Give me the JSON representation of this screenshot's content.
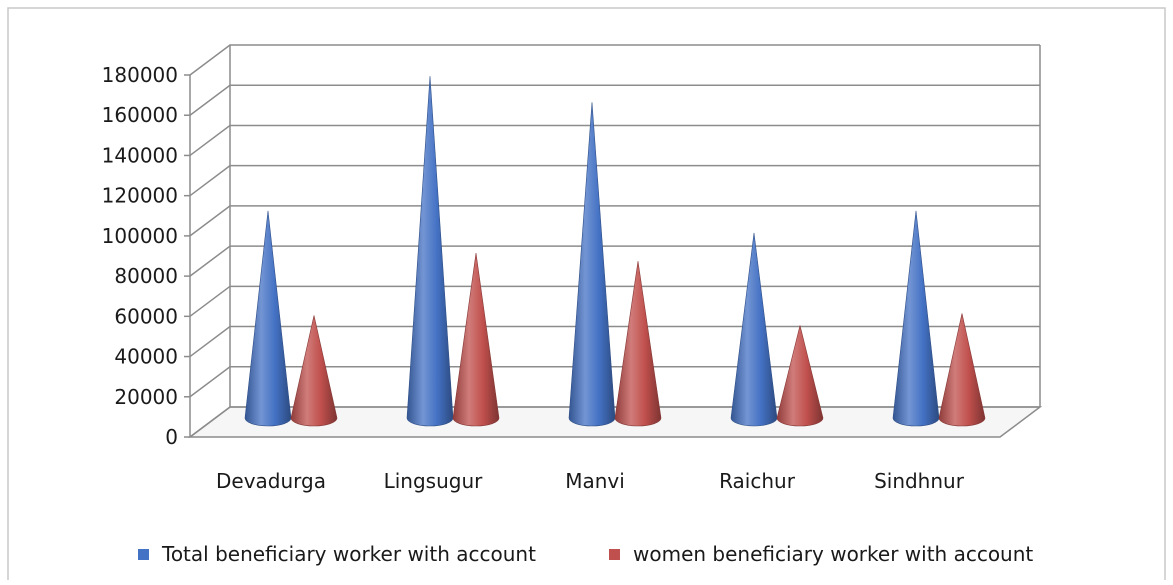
{
  "chart_data": {
    "type": "bar",
    "subtype": "3d-cone",
    "title": "",
    "xlabel": "",
    "ylabel": "",
    "categories": [
      "Devadurga",
      "Lingsugur",
      "Manvi",
      "Raichur",
      "Sindhnur"
    ],
    "series": [
      {
        "name": "Total beneficiary worker with account",
        "values": [
          105000,
          172000,
          159000,
          94000,
          105000
        ],
        "color": "#4472C4"
      },
      {
        "name": "women beneficiary worker with account",
        "values": [
          53000,
          84000,
          80000,
          48000,
          54000
        ],
        "color": "#C0504D"
      }
    ],
    "ylim": [
      0,
      180000
    ],
    "yticks": [
      0,
      20000,
      40000,
      60000,
      80000,
      100000,
      120000,
      140000,
      160000,
      180000
    ],
    "grid": true,
    "legend_position": "bottom"
  }
}
